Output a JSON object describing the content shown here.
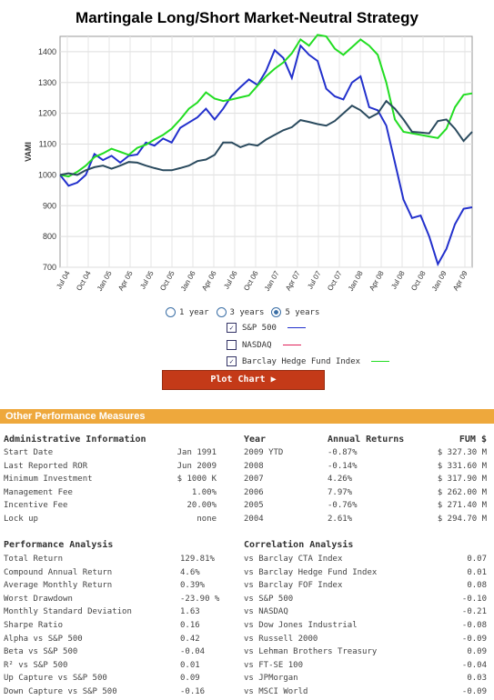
{
  "title": "Martingale Long/Short Market-Neutral Strategy",
  "chart_data": {
    "type": "line",
    "ylabel": "VAMI",
    "ylim": [
      700,
      1450
    ],
    "yticks": [
      700,
      800,
      900,
      1000,
      1100,
      1200,
      1300,
      1400
    ],
    "xticks": [
      "Jul 04",
      "Oct 04",
      "Jan 05",
      "Apr 05",
      "Jul 05",
      "Oct 05",
      "Jan 06",
      "Apr 06",
      "Jul 06",
      "Oct 06",
      "Jan 07",
      "Apr 07",
      "Jul 07",
      "Oct 07",
      "Jan 08",
      "Apr 08",
      "Jul 08",
      "Oct 08",
      "Jan 09",
      "Apr 09"
    ],
    "series": [
      {
        "name": "S&P 500",
        "color": "#2230cc",
        "values": [
          1000,
          965,
          975,
          1000,
          1068,
          1048,
          1062,
          1040,
          1062,
          1066,
          1105,
          1095,
          1118,
          1105,
          1153,
          1170,
          1187,
          1215,
          1180,
          1215,
          1258,
          1285,
          1310,
          1292,
          1338,
          1405,
          1380,
          1315,
          1420,
          1390,
          1370,
          1280,
          1255,
          1245,
          1300,
          1320,
          1220,
          1210,
          1160,
          1040,
          920,
          860,
          868,
          800,
          710,
          760,
          840,
          890,
          895
        ]
      },
      {
        "name": "NASDAQ",
        "color": "#e0205a",
        "values": []
      },
      {
        "name": "Barclay Hedge Fund Index",
        "color": "#22dd22",
        "values": [
          1000,
          995,
          1010,
          1030,
          1058,
          1070,
          1085,
          1075,
          1065,
          1088,
          1098,
          1115,
          1130,
          1150,
          1180,
          1215,
          1235,
          1268,
          1248,
          1240,
          1245,
          1252,
          1258,
          1290,
          1320,
          1345,
          1365,
          1395,
          1440,
          1420,
          1455,
          1450,
          1410,
          1390,
          1415,
          1440,
          1420,
          1390,
          1300,
          1180,
          1140,
          1135,
          1130,
          1125,
          1120,
          1150,
          1220,
          1260,
          1265
        ]
      },
      {
        "name": "Martingale",
        "color": "#2a4a5e",
        "values": [
          1000,
          1005,
          1000,
          1015,
          1025,
          1030,
          1020,
          1030,
          1042,
          1040,
          1030,
          1022,
          1015,
          1015,
          1022,
          1030,
          1045,
          1050,
          1065,
          1105,
          1105,
          1090,
          1100,
          1095,
          1115,
          1130,
          1145,
          1155,
          1178,
          1172,
          1165,
          1160,
          1175,
          1200,
          1225,
          1210,
          1185,
          1200,
          1240,
          1215,
          1180,
          1140,
          1138,
          1135,
          1175,
          1180,
          1150,
          1110,
          1140
        ]
      }
    ]
  },
  "period_options": {
    "one_year": "1 year",
    "three_years": "3 years",
    "five_years": "5 years",
    "selected": "5 years"
  },
  "compare": [
    {
      "label": "S&P 500",
      "checked": true,
      "color": "#2230cc"
    },
    {
      "label": "NASDAQ",
      "checked": false,
      "color": "#e0205a"
    },
    {
      "label": "Barclay Hedge Fund Index",
      "checked": true,
      "color": "#22dd22"
    }
  ],
  "plot_button": "Plot Chart ▶",
  "opm_header": "Other Performance Measures",
  "admin": {
    "heading": "Administrative Information",
    "rows": [
      [
        "Start Date",
        "Jan 1991"
      ],
      [
        "Last Reported ROR",
        "Jun 2009"
      ],
      [
        "Minimum Investment",
        "$ 1000 K"
      ],
      [
        "Management Fee",
        "1.00%"
      ],
      [
        "Incentive Fee",
        "20.00%"
      ],
      [
        "Lock up",
        "none"
      ]
    ]
  },
  "annual": {
    "headings": [
      "Year",
      "Annual Returns",
      "FUM $"
    ],
    "rows": [
      [
        "2009 YTD",
        "-0.87%",
        "$ 327.30 M"
      ],
      [
        "2008",
        "-0.14%",
        "$ 331.60 M"
      ],
      [
        "2007",
        "4.26%",
        "$ 317.90 M"
      ],
      [
        "2006",
        "7.97%",
        "$ 262.00 M"
      ],
      [
        "2005",
        "-0.76%",
        "$ 271.40 M"
      ],
      [
        "2004",
        "2.61%",
        "$ 294.70 M"
      ]
    ]
  },
  "perf": {
    "heading": "Performance Analysis",
    "rows": [
      [
        "Total Return",
        "129.81%"
      ],
      [
        "Compound Annual Return",
        "4.6%"
      ],
      [
        "Average Monthly Return",
        "0.39%"
      ],
      [
        "Worst Drawdown",
        "-23.90 %"
      ],
      [
        "Monthly Standard Deviation",
        "1.63"
      ],
      [
        "Sharpe Ratio",
        "0.16"
      ],
      [
        "Alpha vs S&P 500",
        "0.42"
      ],
      [
        "Beta vs S&P 500",
        "-0.04"
      ],
      [
        "R² vs S&P 500",
        "0.01"
      ],
      [
        "Up Capture vs S&P 500",
        "0.09"
      ],
      [
        "Down Capture vs S&P 500",
        "-0.16"
      ]
    ]
  },
  "corr": {
    "heading": "Correlation Analysis",
    "rows": [
      [
        "vs Barclay CTA Index",
        "0.07"
      ],
      [
        "vs Barclay Hedge Fund Index",
        "0.01"
      ],
      [
        "vs Barclay FOF Index",
        "0.08"
      ],
      [
        "vs S&P 500",
        "-0.10"
      ],
      [
        "vs NASDAQ",
        "-0.21"
      ],
      [
        "vs Dow Jones Industrial",
        "-0.08"
      ],
      [
        "vs Russell 2000",
        "-0.09"
      ],
      [
        "vs Lehman Brothers Treasury",
        "0.09"
      ],
      [
        "vs FT-SE 100",
        "-0.04"
      ],
      [
        "vs JPMorgan",
        "0.03"
      ],
      [
        "vs MSCI World",
        "-0.09"
      ]
    ]
  }
}
